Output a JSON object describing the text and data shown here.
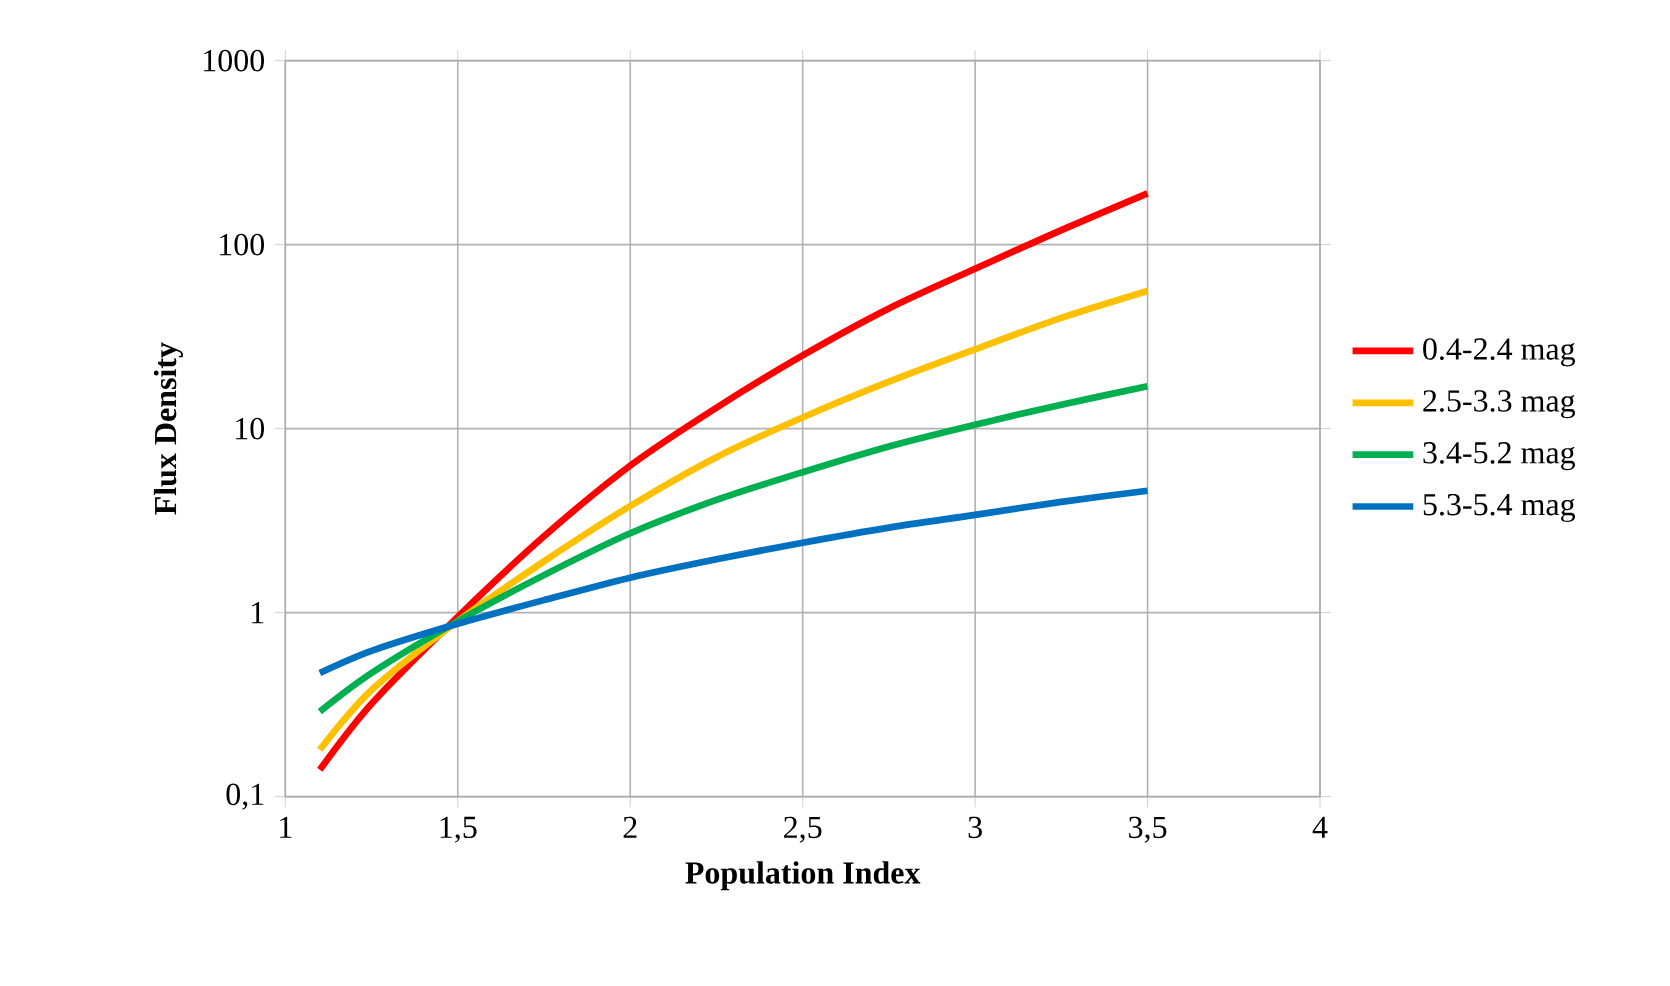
{
  "chart_data": {
    "type": "line",
    "xlabel": "Population Index",
    "ylabel": "Flux Density",
    "x": [
      1.1,
      1.25,
      1.5,
      1.75,
      2,
      2.25,
      2.5,
      2.75,
      3,
      3.25,
      3.5
    ],
    "series": [
      {
        "name": "0.4-2.4 mag",
        "color": "#ff0000",
        "values": [
          0.14,
          0.32,
          0.95,
          2.6,
          6.3,
          13,
          25,
          45,
          74,
          120,
          190
        ]
      },
      {
        "name": "2.5-3.3 mag",
        "color": "#ffc000",
        "values": [
          0.18,
          0.38,
          0.9,
          1.9,
          3.8,
          7,
          11.5,
          18,
          27,
          40,
          56
        ]
      },
      {
        "name": "3.4-5.2 mag",
        "color": "#00b050",
        "values": [
          0.29,
          0.47,
          0.9,
          1.6,
          2.7,
          4.1,
          5.8,
          8,
          10.5,
          13.5,
          17
        ]
      },
      {
        "name": "5.3-5.4 mag",
        "color": "#0070c0",
        "values": [
          0.47,
          0.62,
          0.87,
          1.17,
          1.55,
          1.95,
          2.4,
          2.9,
          3.4,
          4,
          4.6
        ]
      }
    ],
    "xlim": [
      1,
      4
    ],
    "ylim": [
      0.1,
      1000
    ],
    "log": "y",
    "xticks": [
      1,
      {
        "value": 1.5,
        "label": "1,5"
      },
      2,
      {
        "value": 2.5,
        "label": "2,5"
      },
      3,
      {
        "value": 3.5,
        "label": "3,5"
      },
      4
    ],
    "yticks": [
      {
        "value": 0.1,
        "label": "0,1"
      },
      1,
      10,
      100,
      1000
    ],
    "grid": true,
    "legend": "right",
    "marker": "none",
    "line_style": "solid"
  }
}
